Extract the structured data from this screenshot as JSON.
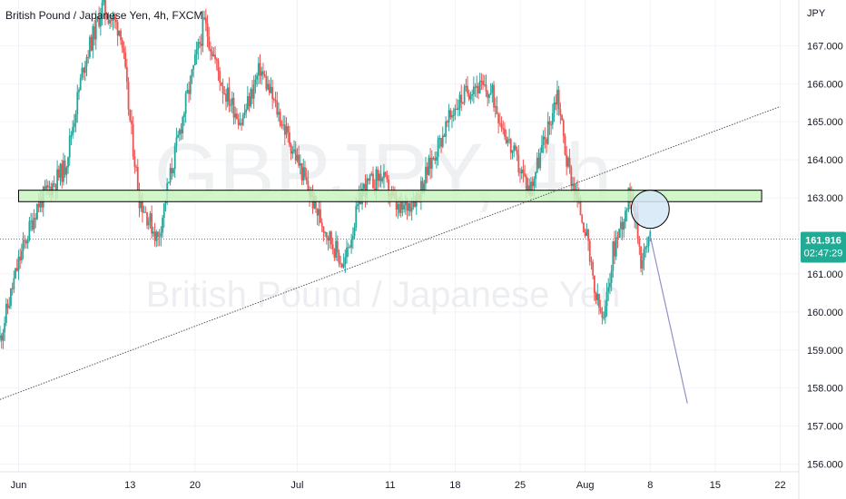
{
  "header": {
    "title": "British Pound / Japanese Yen, 4h, FXCM"
  },
  "watermark": {
    "symbol": "GBPJPY, 4h",
    "name": "British Pound / Japanese Yen"
  },
  "colors": {
    "up": "#26a69a",
    "down": "#ef5350",
    "zone_fill": "#c8f5c0",
    "price_badge": "#22ab94",
    "circle_fill": "#d6e7f7",
    "arrow": "#8f93c4",
    "trendline": "#555555"
  },
  "chart_data": {
    "type": "candlestick",
    "title": "British Pound / Japanese Yen, 4h, FXCM",
    "currency_label": "JPY",
    "ylim": [
      155.8,
      168.2
    ],
    "y_ticks": [
      156,
      157,
      158,
      159,
      160,
      161,
      162,
      163,
      164,
      165,
      166,
      167
    ],
    "y_tick_labels": [
      "156.000",
      "157.000",
      "158.000",
      "159.000",
      "160.000",
      "161.000",
      "162.000",
      "163.000",
      "164.000",
      "165.000",
      "166.000",
      "167.000"
    ],
    "x_range": [
      "May 30",
      "Aug 24"
    ],
    "x_ticks": [
      {
        "date": "Jun 1",
        "label": "Jun"
      },
      {
        "date": "Jun 13",
        "label": "13"
      },
      {
        "date": "Jun 20",
        "label": "20"
      },
      {
        "date": "Jul 1",
        "label": "Jul"
      },
      {
        "date": "Jul 11",
        "label": "11"
      },
      {
        "date": "Jul 18",
        "label": "18"
      },
      {
        "date": "Jul 25",
        "label": "25"
      },
      {
        "date": "Aug 1",
        "label": "Aug"
      },
      {
        "date": "Aug 8",
        "label": "8"
      },
      {
        "date": "Aug 15",
        "label": "15"
      },
      {
        "date": "Aug 22",
        "label": "22"
      }
    ],
    "price_path": [
      {
        "date": "May 30",
        "price": 159.3
      },
      {
        "date": "Jun 1",
        "price": 161.3
      },
      {
        "date": "Jun 3",
        "price": 162.8
      },
      {
        "date": "Jun 6",
        "price": 163.8
      },
      {
        "date": "Jun 8",
        "price": 166.5
      },
      {
        "date": "Jun 10",
        "price": 168.0
      },
      {
        "date": "Jun 12",
        "price": 167.4
      },
      {
        "date": "Jun 13",
        "price": 165.0
      },
      {
        "date": "Jun 14",
        "price": 163.0
      },
      {
        "date": "Jun 16",
        "price": 161.9
      },
      {
        "date": "Jun 17",
        "price": 163.2
      },
      {
        "date": "Jun 19",
        "price": 165.5
      },
      {
        "date": "Jun 21",
        "price": 167.6
      },
      {
        "date": "Jun 23",
        "price": 165.9
      },
      {
        "date": "Jun 25",
        "price": 165.0
      },
      {
        "date": "Jun 27",
        "price": 166.4
      },
      {
        "date": "Jun 29",
        "price": 165.2
      },
      {
        "date": "Jul 1",
        "price": 164.0
      },
      {
        "date": "Jul 3",
        "price": 162.7
      },
      {
        "date": "Jul 5",
        "price": 161.7
      },
      {
        "date": "Jul 6",
        "price": 161.2
      },
      {
        "date": "Jul 8",
        "price": 163.2
      },
      {
        "date": "Jul 10",
        "price": 163.6
      },
      {
        "date": "Jul 12",
        "price": 162.6
      },
      {
        "date": "Jul 14",
        "price": 163.1
      },
      {
        "date": "Jul 16",
        "price": 164.3
      },
      {
        "date": "Jul 18",
        "price": 165.4
      },
      {
        "date": "Jul 20",
        "price": 166.0
      },
      {
        "date": "Jul 22",
        "price": 165.7
      },
      {
        "date": "Jul 24",
        "price": 164.3
      },
      {
        "date": "Jul 26",
        "price": 163.2
      },
      {
        "date": "Jul 28",
        "price": 164.8
      },
      {
        "date": "Jul 29",
        "price": 165.8
      },
      {
        "date": "Jul 30",
        "price": 164.0
      },
      {
        "date": "Jul 31",
        "price": 163.1
      },
      {
        "date": "Aug 1",
        "price": 162.2
      },
      {
        "date": "Aug 2",
        "price": 160.5
      },
      {
        "date": "Aug 3",
        "price": 159.7
      },
      {
        "date": "Aug 4",
        "price": 161.6
      },
      {
        "date": "Aug 5",
        "price": 162.4
      },
      {
        "date": "Aug 6",
        "price": 163.3
      },
      {
        "date": "Aug 7",
        "price": 161.4
      },
      {
        "date": "Aug 8",
        "price": 161.9
      }
    ],
    "annotations": {
      "resistance_zone": {
        "low": 162.9,
        "high": 163.2,
        "from": "Jun 1",
        "to": "Aug 20"
      },
      "trendline": {
        "from": {
          "date": "May 30",
          "price": 157.7
        },
        "to": {
          "date": "Aug 22",
          "price": 165.4
        }
      },
      "circle": {
        "date": "Aug 8",
        "price": 162.7
      },
      "arrow": {
        "from": {
          "date": "Aug 8",
          "price": 162.0
        },
        "to": {
          "date": "Aug 12",
          "price": 157.6
        }
      }
    },
    "last_price": {
      "label": "161.916",
      "value": 161.916,
      "countdown": "02:47:29"
    },
    "grid": true
  }
}
